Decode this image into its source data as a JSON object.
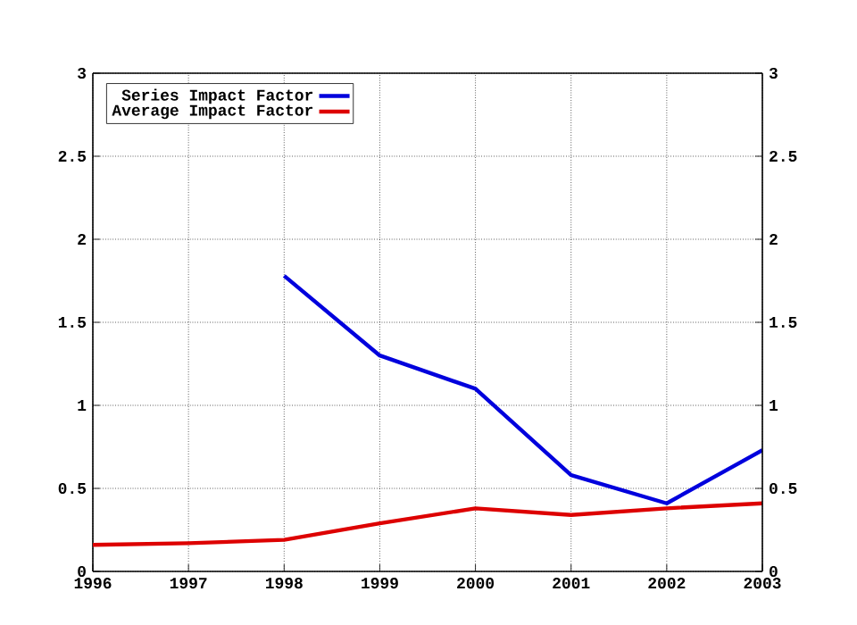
{
  "chart_data": {
    "type": "line",
    "x": [
      1996,
      1997,
      1998,
      1999,
      2000,
      2001,
      2002,
      2003
    ],
    "series": [
      {
        "name": "Series Impact Factor",
        "color": "#0000dd",
        "values": [
          null,
          null,
          1.78,
          1.3,
          1.1,
          0.58,
          0.41,
          0.73
        ]
      },
      {
        "name": "Average Impact Factor",
        "color": "#dd0000",
        "values": [
          0.16,
          0.17,
          0.19,
          0.29,
          0.38,
          0.34,
          0.38,
          0.41
        ]
      }
    ],
    "xlim": [
      1996,
      2003
    ],
    "xticks": [
      1996,
      1997,
      1998,
      1999,
      2000,
      2001,
      2002,
      2003
    ],
    "ylim": [
      0,
      3
    ],
    "yticks": [
      0,
      0.5,
      1,
      1.5,
      2,
      2.5,
      3
    ],
    "y2lim": [
      0,
      3
    ],
    "y2ticks": [
      0,
      0.5,
      1,
      1.5,
      2,
      2.5,
      3
    ],
    "grid": true,
    "legend": "top left",
    "marker": "none",
    "line_style": "solid"
  }
}
